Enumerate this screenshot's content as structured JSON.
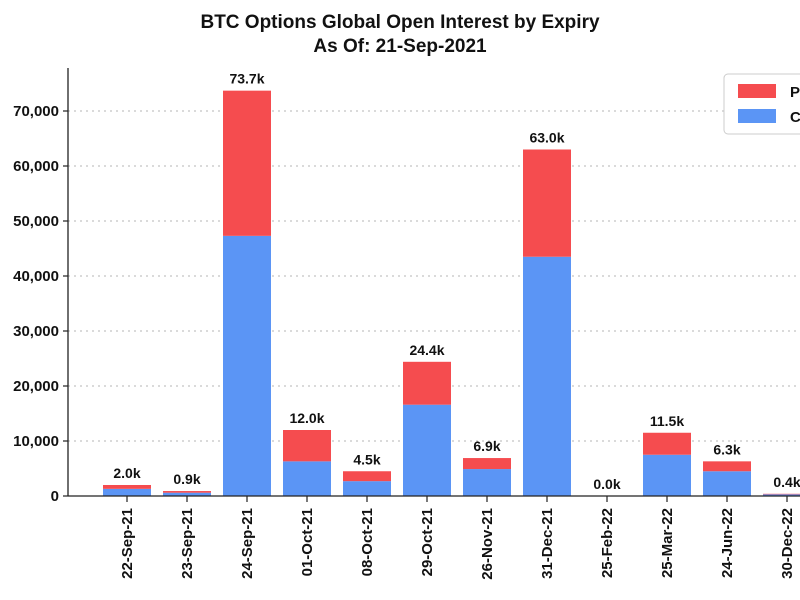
{
  "chart_data": {
    "type": "bar",
    "stacked": true,
    "title": "BTC Options Global Open Interest by Expiry",
    "subtitle": "As Of: 21-Sep-2021",
    "xlabel": "",
    "ylabel": "",
    "ylim": [
      0,
      78000
    ],
    "yticks": [
      0,
      10000,
      20000,
      30000,
      40000,
      50000,
      60000,
      70000
    ],
    "ytick_labels": [
      "0",
      "10,000",
      "20,000",
      "30,000",
      "40,000",
      "50,000",
      "60,000",
      "70,000"
    ],
    "grid": "horizontal-dotted",
    "legend_position": "top-right",
    "categories": [
      "22-Sep-21",
      "23-Sep-21",
      "24-Sep-21",
      "01-Oct-21",
      "08-Oct-21",
      "29-Oct-21",
      "26-Nov-21",
      "31-Dec-21",
      "25-Feb-22",
      "25-Mar-22",
      "24-Jun-22",
      "30-Dec-22"
    ],
    "series": [
      {
        "name": "Calls",
        "legend_label": "C",
        "color": "#5b95f5",
        "values": [
          1300,
          600,
          47300,
          6300,
          2700,
          16600,
          4900,
          43500,
          0,
          7500,
          4500,
          300
        ]
      },
      {
        "name": "Puts",
        "legend_label": "P",
        "color": "#f54c4f",
        "values": [
          700,
          300,
          26400,
          5700,
          1800,
          7800,
          2000,
          19500,
          0,
          4000,
          1800,
          100
        ]
      }
    ],
    "total_labels": [
      "2.0k",
      "0.9k",
      "73.7k",
      "12.0k",
      "4.5k",
      "24.4k",
      "6.9k",
      "63.0k",
      "0.0k",
      "11.5k",
      "6.3k",
      "0.4k"
    ]
  }
}
